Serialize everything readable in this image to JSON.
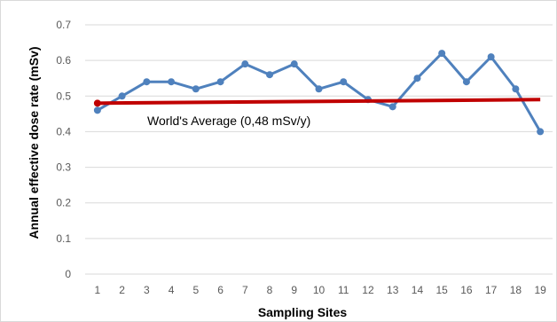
{
  "chart_data": {
    "type": "line",
    "xlabel": "Sampling Sites",
    "ylabel": "Annual effective dose rate (mSv)",
    "categories": [
      "1",
      "2",
      "3",
      "4",
      "5",
      "6",
      "7",
      "8",
      "9",
      "10",
      "11",
      "12",
      "13",
      "14",
      "15",
      "16",
      "17",
      "18",
      "19"
    ],
    "y_ticks": [
      "0",
      "0.1",
      "0.2",
      "0.3",
      "0.4",
      "0.5",
      "0.6",
      "0.7"
    ],
    "ylim": [
      0,
      0.7
    ],
    "grid": true,
    "series": [
      {
        "values": [
          0.46,
          0.5,
          0.54,
          0.54,
          0.52,
          0.54,
          0.59,
          0.56,
          0.59,
          0.52,
          0.54,
          0.49,
          0.47,
          0.55,
          0.62,
          0.54,
          0.61,
          0.52,
          0.4
        ],
        "color": "#4f81bd"
      }
    ],
    "reference_line": {
      "label": "World's Average (0,48 mSv/y)",
      "x_start": 1,
      "x_end": 19,
      "y_start": 0.48,
      "y_end": 0.49,
      "color": "#c00000"
    }
  }
}
